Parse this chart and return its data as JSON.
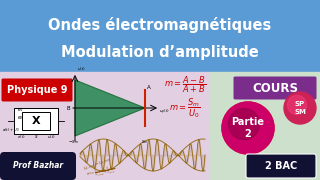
{
  "title_line1": "Ondes électromagnétiques",
  "title_line2": "Modulation d’amplitude",
  "title_bg": "#5b9bd5",
  "title_color": "white",
  "body_bg_left": "#e2cfe2",
  "body_bg_right": "#cce0cc",
  "physique_bg": "#cc0000",
  "physique_text": "Physique 9",
  "cours_bg": "#7b2d8b",
  "cours_text": "COURS",
  "partie_text": "Partie\n2",
  "sp_sm_text": "SP\nSM",
  "bac_bg": "#111133",
  "bac_text": "2 BAC",
  "prof_bg": "#111133",
  "prof_text": "Prof Bazhar",
  "green_dark": "#1a6b35",
  "green_mid": "#2d8b57",
  "red_line": "#cc2200",
  "wave_color": "#8b6000",
  "formula_color": "#cc0000"
}
